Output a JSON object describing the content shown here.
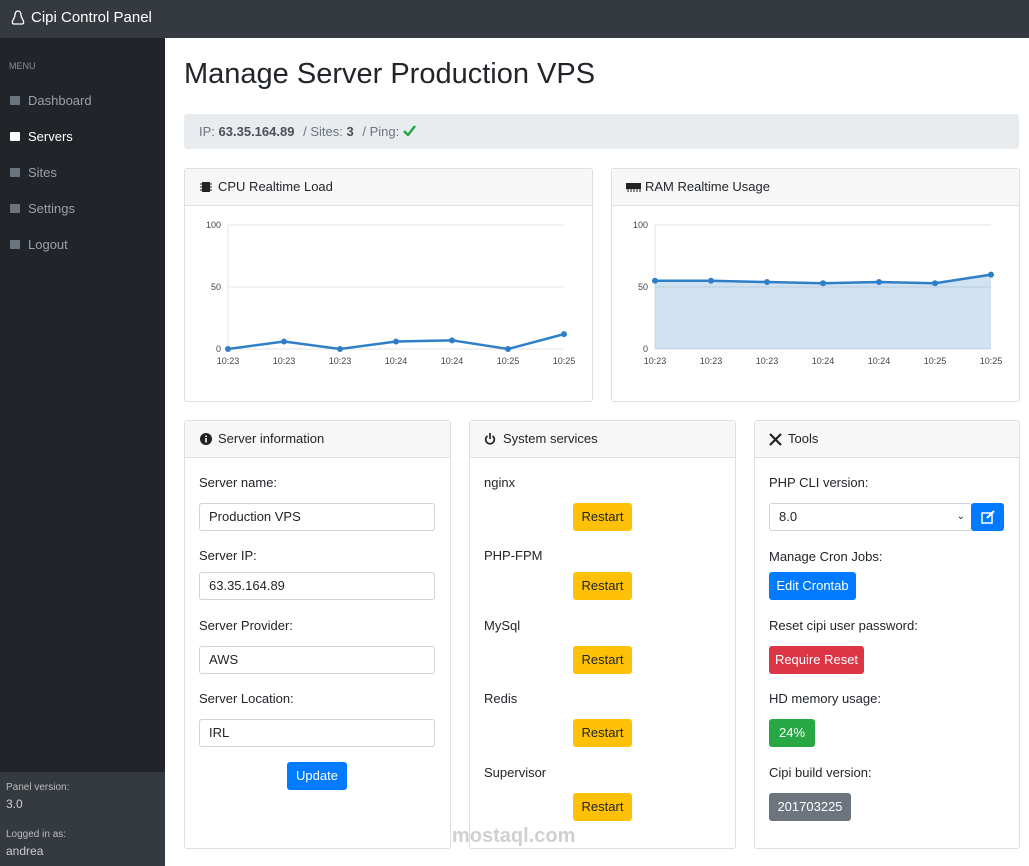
{
  "navbar": {
    "brand": "Cipi Control Panel"
  },
  "sidebar": {
    "menu_label": "MENU",
    "items": [
      "Dashboard",
      "Servers",
      "Sites",
      "Settings",
      "Logout"
    ],
    "active_item": 1
  },
  "footer": {
    "version_label": "Panel version:",
    "version": "3.0",
    "user_label": "Logged in as:",
    "user": "andrea"
  },
  "page": {
    "title": "Manage Server Production VPS",
    "separator": "/",
    "info": {
      "ip_label": "IP:",
      "ip": "63.35.164.89",
      "sites_label": "Sites:",
      "sites": 3,
      "ping_label": "Ping:"
    }
  },
  "cpu_chart": {
    "type": "line",
    "title": "CPU Realtime Load",
    "x": [
      "10:23",
      "10:23",
      "10:23",
      "10:24",
      "10:24",
      "10:25",
      "10:25"
    ],
    "values": [
      0,
      6,
      0,
      6,
      7,
      0,
      12
    ],
    "ylim": [
      0,
      100
    ],
    "yticks": [
      0,
      50,
      100
    ],
    "grid": true,
    "color": "#2f7fc8",
    "area": false
  },
  "ram_chart": {
    "type": "line",
    "title": "RAM Realtime Usage",
    "x": [
      "10:23",
      "10:23",
      "10:23",
      "10:24",
      "10:24",
      "10:25",
      "10:25"
    ],
    "values": [
      55,
      55,
      54,
      53,
      54,
      53,
      60
    ],
    "ylim": [
      0,
      100
    ],
    "yticks": [
      0,
      50,
      100
    ],
    "grid": true,
    "color": "#2f7fc8",
    "area": true
  },
  "server_info": {
    "title": "Server information",
    "fields": [
      {
        "label": "Server name:",
        "value": "Production VPS"
      },
      {
        "label": "Server IP:",
        "value": "63.35.164.89"
      },
      {
        "label": "Server Provider:",
        "value": "AWS"
      },
      {
        "label": "Server Location:",
        "value": "IRL"
      }
    ],
    "button": "Update"
  },
  "services": {
    "title": "System services",
    "items": [
      "nginx",
      "PHP-FPM",
      "MySql",
      "Redis",
      "Supervisor"
    ],
    "button": "Restart"
  },
  "tools": {
    "title": "Tools",
    "php_label": "PHP CLI version:",
    "php_version": "8.0",
    "cron_label": "Manage Cron Jobs:",
    "cron_button": "Edit Crontab",
    "reset_label": "Reset cipi user password:",
    "reset_button": "Require Reset",
    "hd_label": "HD memory usage:",
    "hd_usage": "24%",
    "build_label": "Cipi build version:",
    "build": "201703225"
  },
  "watermark": "mostaql.com"
}
